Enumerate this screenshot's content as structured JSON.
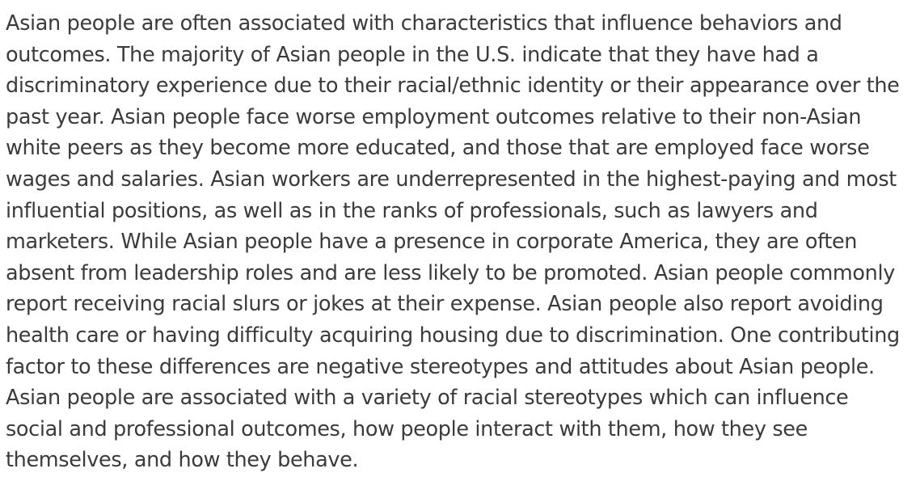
{
  "document": {
    "lines": [
      "Asian people are often associated with characteristics that influence behaviors and",
      "outcomes. The majority of Asian people in the U.S. indicate that they have had a",
      "discriminatory experience due to their racial/ethnic identity or their appearance over the",
      "past year. Asian people face worse employment outcomes relative to their non-Asian",
      "white peers as they become more educated, and those that are employed face worse",
      "wages and salaries. Asian workers are underrepresented in the highest-paying and most",
      "influential positions, as well as in the ranks of professionals, such as lawyers and",
      "marketers. While Asian people have a presence in corporate America, they are often",
      "absent from leadership roles and are less likely to be promoted. Asian people commonly",
      "report receiving racial slurs or jokes at their expense. Asian people also report avoiding",
      "health care or having difficulty acquiring housing due to discrimination. One contributing",
      "factor to these differences are negative stereotypes and attitudes about Asian people.",
      "Asian people are associated with a variety of racial stereotypes which can influence",
      "social and professional outcomes, how people interact with them, how they see",
      "themselves, and how they behave."
    ]
  }
}
